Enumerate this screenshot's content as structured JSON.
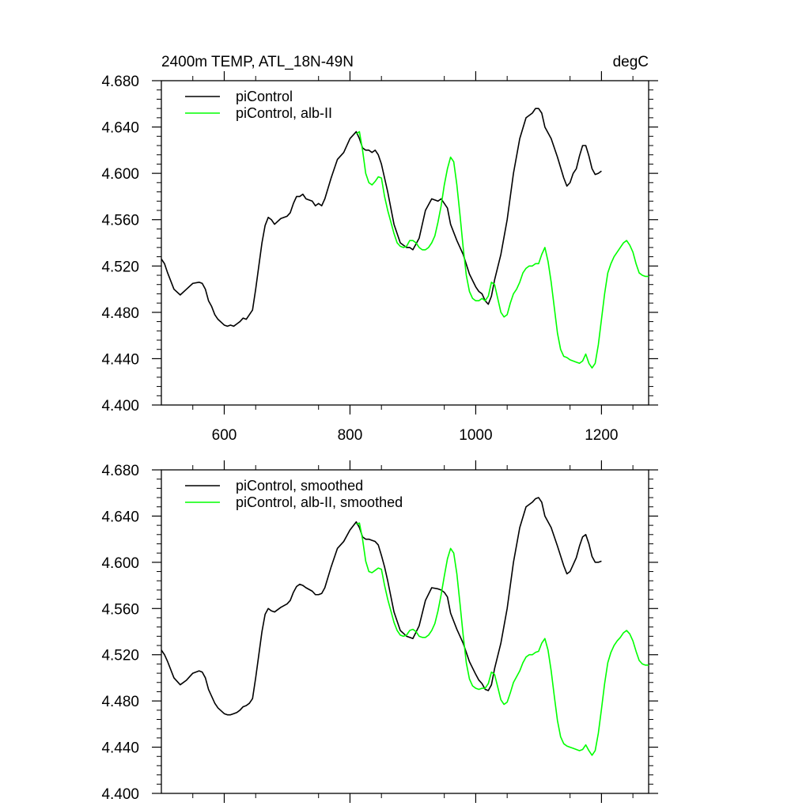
{
  "chart_data": [
    {
      "type": "line",
      "title": "2400m TEMP, ATL_18N-49N",
      "units": "degC",
      "xlim": [
        500,
        1275
      ],
      "ylim": [
        4.4,
        4.68
      ],
      "xticks": [
        600,
        800,
        1000,
        1200
      ],
      "xtick_labels": [
        "600",
        "800",
        "1000",
        "1200"
      ],
      "yticks": [
        4.4,
        4.44,
        4.48,
        4.52,
        4.56,
        4.6,
        4.64,
        4.68
      ],
      "ytick_labels": [
        "4.400",
        "4.440",
        "4.480",
        "4.520",
        "4.560",
        "4.600",
        "4.640",
        "4.680"
      ],
      "legend_position": "top-left",
      "series": [
        {
          "name": "piControl",
          "color": "#000000",
          "x": [
            500,
            505,
            510,
            520,
            530,
            540,
            550,
            560,
            565,
            570,
            575,
            580,
            585,
            590,
            600,
            605,
            610,
            615,
            620,
            625,
            630,
            635,
            640,
            645,
            650,
            655,
            660,
            665,
            670,
            675,
            680,
            690,
            700,
            705,
            710,
            715,
            720,
            725,
            730,
            740,
            745,
            750,
            755,
            760,
            770,
            775,
            780,
            790,
            800,
            810,
            815,
            820,
            825,
            830,
            835,
            840,
            845,
            850,
            855,
            860,
            870,
            880,
            890,
            895,
            900,
            910,
            920,
            930,
            940,
            945,
            950,
            955,
            960,
            970,
            980,
            990,
            1000,
            1005,
            1010,
            1015,
            1020,
            1025,
            1030,
            1040,
            1050,
            1060,
            1070,
            1080,
            1090,
            1095,
            1100,
            1105,
            1110,
            1120,
            1130,
            1140,
            1145,
            1150,
            1155,
            1160,
            1165,
            1170,
            1175,
            1180,
            1185,
            1190,
            1195,
            1200
          ],
          "values": [
            4.526,
            4.522,
            4.514,
            4.5,
            4.495,
            4.5,
            4.505,
            4.506,
            4.505,
            4.5,
            4.49,
            4.485,
            4.478,
            4.474,
            4.469,
            4.468,
            4.469,
            4.468,
            4.47,
            4.472,
            4.475,
            4.474,
            4.478,
            4.482,
            4.5,
            4.52,
            4.54,
            4.555,
            4.562,
            4.56,
            4.556,
            4.561,
            4.563,
            4.566,
            4.574,
            4.58,
            4.58,
            4.582,
            4.578,
            4.576,
            4.572,
            4.574,
            4.572,
            4.578,
            4.596,
            4.604,
            4.612,
            4.618,
            4.63,
            4.636,
            4.63,
            4.622,
            4.62,
            4.62,
            4.618,
            4.62,
            4.616,
            4.608,
            4.596,
            4.584,
            4.556,
            4.54,
            4.536,
            4.536,
            4.534,
            4.544,
            4.568,
            4.578,
            4.576,
            4.578,
            4.574,
            4.57,
            4.556,
            4.542,
            4.53,
            4.513,
            4.502,
            4.498,
            4.496,
            4.49,
            4.487,
            4.494,
            4.508,
            4.53,
            4.56,
            4.6,
            4.63,
            4.648,
            4.652,
            4.656,
            4.656,
            4.652,
            4.64,
            4.63,
            4.614,
            4.596,
            4.589,
            4.592,
            4.6,
            4.604,
            4.615,
            4.624,
            4.624,
            4.615,
            4.604,
            4.599,
            4.6,
            4.602
          ]
        },
        {
          "name": "piControl, alb-II",
          "color": "#00ff00",
          "x": [
            810,
            815,
            820,
            825,
            830,
            835,
            840,
            845,
            850,
            855,
            860,
            865,
            870,
            875,
            880,
            885,
            890,
            895,
            900,
            905,
            910,
            915,
            920,
            925,
            930,
            935,
            940,
            945,
            950,
            955,
            960,
            965,
            970,
            975,
            980,
            985,
            990,
            995,
            1000,
            1005,
            1010,
            1015,
            1020,
            1025,
            1030,
            1035,
            1040,
            1045,
            1050,
            1055,
            1060,
            1065,
            1070,
            1075,
            1080,
            1085,
            1090,
            1095,
            1100,
            1105,
            1110,
            1115,
            1120,
            1125,
            1130,
            1135,
            1140,
            1145,
            1150,
            1155,
            1160,
            1165,
            1170,
            1175,
            1180,
            1185,
            1190,
            1195,
            1200,
            1205,
            1210,
            1215,
            1220,
            1225,
            1230,
            1235,
            1240,
            1245,
            1250,
            1255,
            1260,
            1265,
            1270,
            1275
          ],
          "values": [
            4.634,
            4.636,
            4.62,
            4.6,
            4.592,
            4.59,
            4.593,
            4.597,
            4.596,
            4.58,
            4.568,
            4.558,
            4.548,
            4.54,
            4.537,
            4.536,
            4.537,
            4.542,
            4.542,
            4.54,
            4.536,
            4.534,
            4.534,
            4.536,
            4.54,
            4.546,
            4.558,
            4.572,
            4.59,
            4.604,
            4.614,
            4.61,
            4.59,
            4.564,
            4.536,
            4.512,
            4.498,
            4.492,
            4.49,
            4.49,
            4.492,
            4.49,
            4.494,
            4.506,
            4.504,
            4.492,
            4.48,
            4.476,
            4.478,
            4.488,
            4.496,
            4.5,
            4.506,
            4.514,
            4.518,
            4.52,
            4.52,
            4.522,
            4.522,
            4.53,
            4.536,
            4.524,
            4.506,
            4.484,
            4.462,
            4.448,
            4.442,
            4.441,
            4.439,
            4.438,
            4.437,
            4.436,
            4.438,
            4.444,
            4.436,
            4.432,
            4.436,
            4.452,
            4.474,
            4.496,
            4.514,
            4.522,
            4.528,
            4.532,
            4.536,
            4.54,
            4.542,
            4.538,
            4.532,
            4.522,
            4.514,
            4.512,
            4.511,
            4.511
          ]
        }
      ]
    },
    {
      "type": "line",
      "title": "",
      "xlim": [
        500,
        1275
      ],
      "ylim": [
        4.4,
        4.68
      ],
      "xticks": [
        600,
        800,
        1000,
        1200
      ],
      "yticks": [
        4.4,
        4.44,
        4.48,
        4.52,
        4.56,
        4.6,
        4.64,
        4.68
      ],
      "ytick_labels": [
        "4.400",
        "4.440",
        "4.480",
        "4.520",
        "4.560",
        "4.600",
        "4.640",
        "4.680"
      ],
      "legend_position": "top-left",
      "series": [
        {
          "name": "piControl, smoothed",
          "color": "#000000",
          "x": [
            500,
            505,
            510,
            520,
            530,
            540,
            550,
            560,
            565,
            570,
            575,
            580,
            585,
            590,
            600,
            605,
            610,
            615,
            620,
            625,
            630,
            635,
            640,
            645,
            650,
            655,
            660,
            665,
            670,
            675,
            680,
            690,
            700,
            705,
            710,
            715,
            720,
            725,
            730,
            740,
            745,
            750,
            755,
            760,
            770,
            775,
            780,
            790,
            800,
            810,
            815,
            820,
            825,
            830,
            835,
            840,
            845,
            850,
            855,
            860,
            870,
            880,
            890,
            895,
            900,
            910,
            920,
            930,
            940,
            945,
            950,
            955,
            960,
            970,
            980,
            990,
            1000,
            1005,
            1010,
            1015,
            1020,
            1025,
            1030,
            1040,
            1050,
            1060,
            1070,
            1080,
            1090,
            1095,
            1100,
            1105,
            1110,
            1120,
            1130,
            1140,
            1145,
            1150,
            1155,
            1160,
            1165,
            1170,
            1175,
            1180,
            1185,
            1190,
            1195,
            1200
          ],
          "values": [
            4.524,
            4.52,
            4.514,
            4.5,
            4.494,
            4.498,
            4.504,
            4.506,
            4.505,
            4.5,
            4.49,
            4.484,
            4.478,
            4.474,
            4.469,
            4.468,
            4.468,
            4.469,
            4.47,
            4.472,
            4.475,
            4.476,
            4.478,
            4.482,
            4.5,
            4.52,
            4.54,
            4.555,
            4.56,
            4.558,
            4.557,
            4.561,
            4.564,
            4.567,
            4.574,
            4.579,
            4.581,
            4.58,
            4.578,
            4.575,
            4.572,
            4.572,
            4.573,
            4.578,
            4.596,
            4.604,
            4.612,
            4.618,
            4.628,
            4.635,
            4.63,
            4.622,
            4.62,
            4.62,
            4.619,
            4.618,
            4.615,
            4.606,
            4.596,
            4.584,
            4.557,
            4.541,
            4.536,
            4.535,
            4.534,
            4.545,
            4.567,
            4.578,
            4.577,
            4.576,
            4.574,
            4.57,
            4.556,
            4.542,
            4.53,
            4.514,
            4.503,
            4.498,
            4.495,
            4.49,
            4.489,
            4.494,
            4.508,
            4.53,
            4.56,
            4.6,
            4.63,
            4.648,
            4.652,
            4.655,
            4.656,
            4.652,
            4.64,
            4.63,
            4.614,
            4.597,
            4.59,
            4.592,
            4.598,
            4.604,
            4.614,
            4.622,
            4.624,
            4.616,
            4.605,
            4.6,
            4.6,
            4.601
          ]
        },
        {
          "name": "piControl, alb-II, smoothed",
          "color": "#00ff00",
          "x": [
            810,
            815,
            820,
            825,
            830,
            835,
            840,
            845,
            850,
            855,
            860,
            865,
            870,
            875,
            880,
            885,
            890,
            895,
            900,
            905,
            910,
            915,
            920,
            925,
            930,
            935,
            940,
            945,
            950,
            955,
            960,
            965,
            970,
            975,
            980,
            985,
            990,
            995,
            1000,
            1005,
            1010,
            1015,
            1020,
            1025,
            1030,
            1035,
            1040,
            1045,
            1050,
            1055,
            1060,
            1065,
            1070,
            1075,
            1080,
            1085,
            1090,
            1095,
            1100,
            1105,
            1110,
            1115,
            1120,
            1125,
            1130,
            1135,
            1140,
            1145,
            1150,
            1155,
            1160,
            1165,
            1170,
            1175,
            1180,
            1185,
            1190,
            1195,
            1200,
            1205,
            1210,
            1215,
            1220,
            1225,
            1230,
            1235,
            1240,
            1245,
            1250,
            1255,
            1260,
            1265,
            1270,
            1275
          ],
          "values": [
            4.633,
            4.634,
            4.62,
            4.601,
            4.592,
            4.591,
            4.593,
            4.595,
            4.594,
            4.58,
            4.568,
            4.558,
            4.548,
            4.541,
            4.537,
            4.536,
            4.537,
            4.541,
            4.542,
            4.54,
            4.536,
            4.535,
            4.535,
            4.537,
            4.541,
            4.547,
            4.558,
            4.572,
            4.588,
            4.603,
            4.612,
            4.608,
            4.59,
            4.564,
            4.537,
            4.513,
            4.499,
            4.493,
            4.491,
            4.49,
            4.491,
            4.491,
            4.495,
            4.505,
            4.503,
            4.492,
            4.481,
            4.477,
            4.479,
            4.487,
            4.496,
            4.501,
            4.506,
            4.513,
            4.518,
            4.52,
            4.52,
            4.522,
            4.523,
            4.53,
            4.534,
            4.524,
            4.506,
            4.484,
            4.463,
            4.449,
            4.443,
            4.441,
            4.44,
            4.439,
            4.438,
            4.437,
            4.438,
            4.442,
            4.437,
            4.433,
            4.437,
            4.452,
            4.473,
            4.495,
            4.513,
            4.522,
            4.528,
            4.532,
            4.535,
            4.539,
            4.541,
            4.538,
            4.532,
            4.523,
            4.515,
            4.512,
            4.511,
            4.511
          ]
        }
      ]
    }
  ]
}
